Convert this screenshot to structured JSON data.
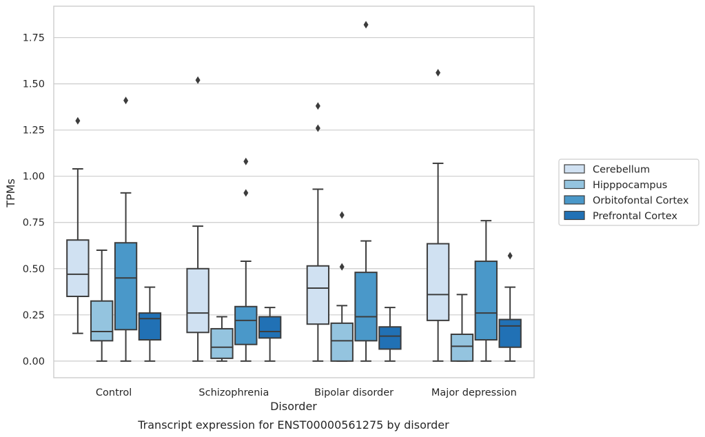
{
  "chart_data": {
    "type": "box",
    "title": "",
    "caption": "Transcript expression for ENST00000561275 by disorder",
    "xlabel": "Disorder",
    "ylabel": "TPMs",
    "ylim": [
      -0.09,
      1.92
    ],
    "yticks": [
      "0.00",
      "0.25",
      "0.50",
      "0.75",
      "1.00",
      "1.25",
      "1.50",
      "1.75"
    ],
    "grid": "horizontal",
    "legend_position": "right",
    "categories": [
      "Control",
      "Schizophrenia",
      "Bipolar disorder",
      "Major depression"
    ],
    "series": [
      {
        "name": "Cerebellum",
        "color": "#d0e1f2",
        "boxes": [
          {
            "whislo": 0.15,
            "q1": 0.35,
            "med": 0.47,
            "q3": 0.655,
            "whishi": 1.04,
            "fliers": [
              1.3
            ]
          },
          {
            "whislo": 0.0,
            "q1": 0.155,
            "med": 0.26,
            "q3": 0.5,
            "whishi": 0.73,
            "fliers": [
              1.52
            ]
          },
          {
            "whislo": 0.0,
            "q1": 0.2,
            "med": 0.395,
            "q3": 0.515,
            "whishi": 0.93,
            "fliers": [
              1.26,
              1.38
            ]
          },
          {
            "whislo": 0.0,
            "q1": 0.22,
            "med": 0.36,
            "q3": 0.635,
            "whishi": 1.07,
            "fliers": [
              1.56
            ]
          }
        ]
      },
      {
        "name": "Hipppocampus",
        "color": "#94c4df",
        "boxes": [
          {
            "whislo": 0.0,
            "q1": 0.11,
            "med": 0.16,
            "q3": 0.325,
            "whishi": 0.6,
            "fliers": []
          },
          {
            "whislo": 0.0,
            "q1": 0.015,
            "med": 0.075,
            "q3": 0.175,
            "whishi": 0.24,
            "fliers": []
          },
          {
            "whislo": 0.0,
            "q1": 0.0,
            "med": 0.11,
            "q3": 0.205,
            "whishi": 0.3,
            "fliers": [
              0.51,
              0.79
            ]
          },
          {
            "whislo": 0.0,
            "q1": 0.0,
            "med": 0.08,
            "q3": 0.145,
            "whishi": 0.36,
            "fliers": []
          }
        ]
      },
      {
        "name": "Orbitofontal Cortex",
        "color": "#4a98c9",
        "boxes": [
          {
            "whislo": 0.0,
            "q1": 0.17,
            "med": 0.45,
            "q3": 0.64,
            "whishi": 0.91,
            "fliers": [
              1.41
            ]
          },
          {
            "whislo": 0.0,
            "q1": 0.09,
            "med": 0.22,
            "q3": 0.295,
            "whishi": 0.54,
            "fliers": [
              0.91,
              1.08
            ]
          },
          {
            "whislo": 0.0,
            "q1": 0.11,
            "med": 0.24,
            "q3": 0.48,
            "whishi": 0.65,
            "fliers": [
              1.82
            ]
          },
          {
            "whislo": 0.0,
            "q1": 0.115,
            "med": 0.26,
            "q3": 0.54,
            "whishi": 0.76,
            "fliers": []
          }
        ]
      },
      {
        "name": "Prefrontal Cortex",
        "color": "#2171b5",
        "boxes": [
          {
            "whislo": 0.0,
            "q1": 0.115,
            "med": 0.23,
            "q3": 0.26,
            "whishi": 0.4,
            "fliers": []
          },
          {
            "whislo": 0.0,
            "q1": 0.125,
            "med": 0.16,
            "q3": 0.24,
            "whishi": 0.29,
            "fliers": []
          },
          {
            "whislo": 0.0,
            "q1": 0.065,
            "med": 0.135,
            "q3": 0.185,
            "whishi": 0.29,
            "fliers": []
          },
          {
            "whislo": 0.0,
            "q1": 0.075,
            "med": 0.19,
            "q3": 0.225,
            "whishi": 0.4,
            "fliers": [
              0.57
            ]
          }
        ]
      }
    ]
  }
}
